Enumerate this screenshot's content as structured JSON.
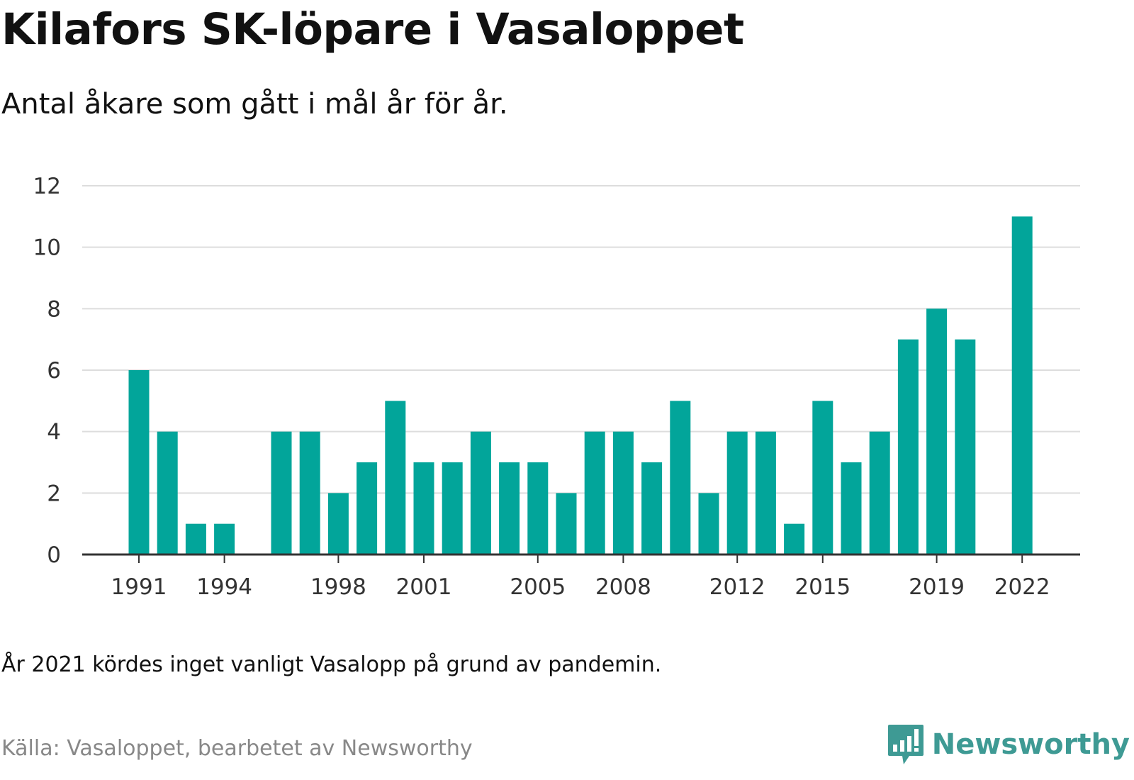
{
  "header": {
    "title": "Kilafors SK-löpare i Vasaloppet",
    "subtitle": "Antal åkare som gått i mål år för år."
  },
  "footer": {
    "note": "År 2021 kördes inget vanligt Vasalopp på grund av pandemin.",
    "source": "Källa: Vasaloppet, bearbetet av Newsworthy",
    "brand": "Newsworthy",
    "brand_icon": "bar-chart-speech-bubble-icon"
  },
  "colors": {
    "bar": "#02a59a",
    "grid": "#dddddd",
    "axis": "#333333",
    "brand": "#3e9a94"
  },
  "chart_data": {
    "type": "bar",
    "title": "Kilafors SK-löpare i Vasaloppet",
    "subtitle": "Antal åkare som gått i mål år för år.",
    "xlabel": "",
    "ylabel": "",
    "ylim": [
      0,
      12
    ],
    "yticks": [
      0,
      2,
      4,
      6,
      8,
      10,
      12
    ],
    "xtick_labels": [
      "1991",
      "1994",
      "1998",
      "2001",
      "2005",
      "2008",
      "2012",
      "2015",
      "2019",
      "2022"
    ],
    "grid": true,
    "legend": "none",
    "categories": [
      1991,
      1992,
      1993,
      1994,
      1995,
      1996,
      1997,
      1998,
      1999,
      2000,
      2001,
      2002,
      2003,
      2004,
      2005,
      2006,
      2007,
      2008,
      2009,
      2010,
      2011,
      2012,
      2013,
      2014,
      2015,
      2016,
      2017,
      2018,
      2019,
      2020,
      2021,
      2022
    ],
    "values": [
      6,
      4,
      1,
      1,
      0,
      4,
      4,
      2,
      3,
      5,
      3,
      3,
      4,
      3,
      3,
      2,
      4,
      4,
      3,
      5,
      2,
      4,
      4,
      1,
      5,
      3,
      4,
      7,
      8,
      7,
      0,
      11
    ]
  }
}
